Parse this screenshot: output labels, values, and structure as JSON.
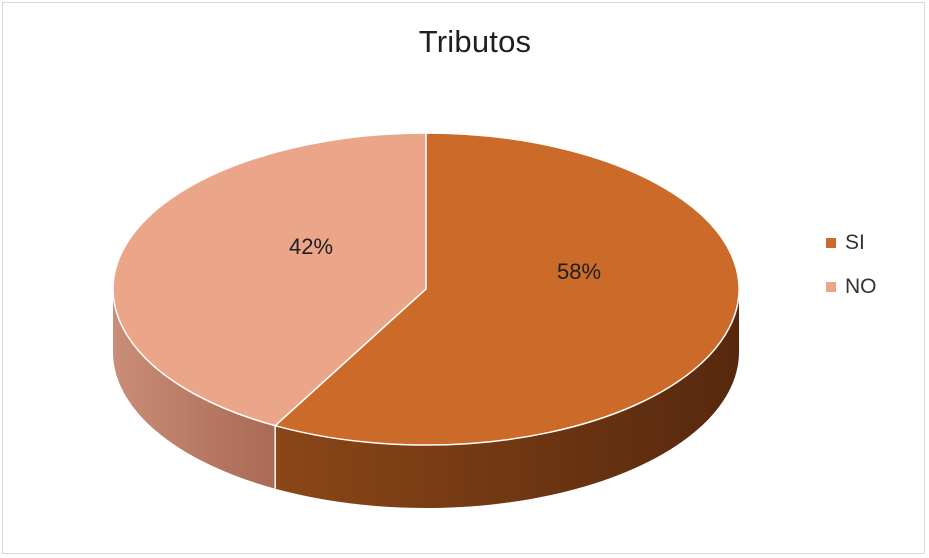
{
  "chart_data": {
    "type": "pie",
    "title": "Tributos",
    "slices": [
      {
        "label": "SI",
        "value": 58,
        "display": "58%",
        "color": "#cc6a29",
        "side_dark": "#57280e",
        "side_light": "#8a4718"
      },
      {
        "label": "NO",
        "value": 42,
        "display": "42%",
        "color": "#eba68a",
        "side_dark": "#a96a55",
        "side_light": "#c98d78"
      }
    ],
    "legend_position": "right",
    "style": "3d"
  }
}
